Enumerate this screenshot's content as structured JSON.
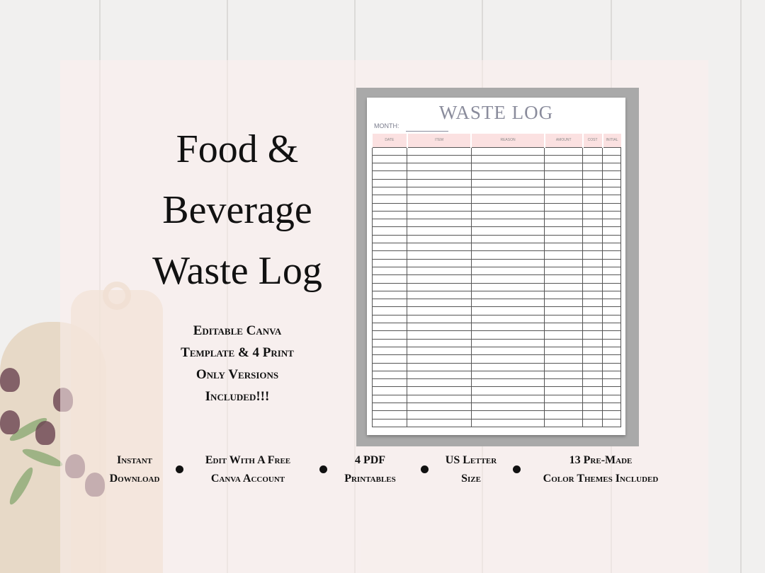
{
  "headline": [
    "Food &",
    "Beverage",
    "Waste Log"
  ],
  "subheadline": [
    "Editable Canva",
    "Template & 4 Print",
    "Only Versions",
    "Included!!!"
  ],
  "template": {
    "title": "WASTE LOG",
    "month_label": "MONTH:",
    "columns": [
      "DATE",
      "ITEM",
      "REASON",
      "AMOUNT",
      "COST",
      "INITIAL"
    ],
    "header_color": "#fbe1e1"
  },
  "features": [
    [
      "Instant",
      "Download"
    ],
    [
      "Edit With A Free",
      "Canva Account"
    ],
    [
      "4 PDF",
      "Printables"
    ],
    [
      "US Letter",
      "Size"
    ],
    [
      "13 Pre-Made",
      "Color Themes Included"
    ]
  ]
}
